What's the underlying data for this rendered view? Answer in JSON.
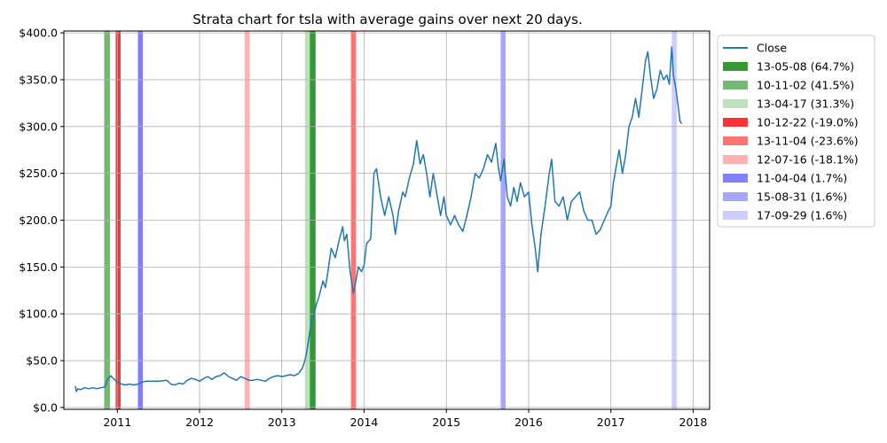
{
  "chart_data": {
    "type": "line",
    "title": "Strata chart for tsla with average gains over next 20 days.",
    "xlabel": "",
    "ylabel": "",
    "xlim": [
      2010.35,
      2018.2
    ],
    "ylim": [
      -2,
      402
    ],
    "x_ticks": [
      {
        "value": 2011,
        "label": "2011"
      },
      {
        "value": 2012,
        "label": "2012"
      },
      {
        "value": 2013,
        "label": "2013"
      },
      {
        "value": 2014,
        "label": "2014"
      },
      {
        "value": 2015,
        "label": "2015"
      },
      {
        "value": 2016,
        "label": "2016"
      },
      {
        "value": 2017,
        "label": "2017"
      },
      {
        "value": 2018,
        "label": "2018"
      }
    ],
    "y_ticks": [
      {
        "value": 0,
        "label": "$0.0"
      },
      {
        "value": 50,
        "label": "$50.0"
      },
      {
        "value": 100,
        "label": "$100.0"
      },
      {
        "value": 150,
        "label": "$150.0"
      },
      {
        "value": 200,
        "label": "$200.0"
      },
      {
        "value": 250,
        "label": "$250.0"
      },
      {
        "value": 300,
        "label": "$300.0"
      },
      {
        "value": 350,
        "label": "$350.0"
      },
      {
        "value": 400,
        "label": "$400.0"
      }
    ],
    "grid": true,
    "legend_position": "right",
    "series": [
      {
        "name": "Close",
        "color": "#1f77b4",
        "points": [
          [
            2010.49,
            23
          ],
          [
            2010.5,
            17
          ],
          [
            2010.52,
            20
          ],
          [
            2010.55,
            19
          ],
          [
            2010.6,
            21
          ],
          [
            2010.65,
            20
          ],
          [
            2010.7,
            21
          ],
          [
            2010.75,
            20
          ],
          [
            2010.8,
            21
          ],
          [
            2010.85,
            22
          ],
          [
            2010.88,
            30
          ],
          [
            2010.92,
            34
          ],
          [
            2010.95,
            31
          ],
          [
            2011.0,
            27
          ],
          [
            2011.05,
            25
          ],
          [
            2011.1,
            24
          ],
          [
            2011.15,
            25
          ],
          [
            2011.2,
            24
          ],
          [
            2011.25,
            25
          ],
          [
            2011.3,
            27
          ],
          [
            2011.35,
            28
          ],
          [
            2011.4,
            28
          ],
          [
            2011.5,
            28
          ],
          [
            2011.6,
            29
          ],
          [
            2011.65,
            25
          ],
          [
            2011.7,
            24
          ],
          [
            2011.75,
            26
          ],
          [
            2011.8,
            25
          ],
          [
            2011.85,
            29
          ],
          [
            2011.9,
            31
          ],
          [
            2011.95,
            30
          ],
          [
            2012.0,
            28
          ],
          [
            2012.05,
            31
          ],
          [
            2012.1,
            33
          ],
          [
            2012.15,
            30
          ],
          [
            2012.2,
            33
          ],
          [
            2012.25,
            34
          ],
          [
            2012.3,
            37
          ],
          [
            2012.35,
            33
          ],
          [
            2012.4,
            31
          ],
          [
            2012.45,
            29
          ],
          [
            2012.5,
            33
          ],
          [
            2012.55,
            31
          ],
          [
            2012.6,
            29
          ],
          [
            2012.65,
            29
          ],
          [
            2012.7,
            30
          ],
          [
            2012.75,
            29
          ],
          [
            2012.8,
            28
          ],
          [
            2012.85,
            31
          ],
          [
            2012.9,
            33
          ],
          [
            2012.95,
            34
          ],
          [
            2013.0,
            33
          ],
          [
            2013.05,
            34
          ],
          [
            2013.1,
            35
          ],
          [
            2013.15,
            34
          ],
          [
            2013.2,
            36
          ],
          [
            2013.25,
            42
          ],
          [
            2013.28,
            50
          ],
          [
            2013.3,
            58
          ],
          [
            2013.33,
            75
          ],
          [
            2013.36,
            92
          ],
          [
            2013.39,
            100
          ],
          [
            2013.42,
            110
          ],
          [
            2013.45,
            118
          ],
          [
            2013.5,
            135
          ],
          [
            2013.53,
            128
          ],
          [
            2013.56,
            145
          ],
          [
            2013.6,
            170
          ],
          [
            2013.65,
            160
          ],
          [
            2013.7,
            180
          ],
          [
            2013.74,
            193
          ],
          [
            2013.76,
            178
          ],
          [
            2013.79,
            185
          ],
          [
            2013.83,
            145
          ],
          [
            2013.87,
            122
          ],
          [
            2013.9,
            135
          ],
          [
            2013.93,
            150
          ],
          [
            2013.97,
            145
          ],
          [
            2014.0,
            152
          ],
          [
            2014.03,
            175
          ],
          [
            2014.08,
            180
          ],
          [
            2014.12,
            250
          ],
          [
            2014.15,
            255
          ],
          [
            2014.2,
            225
          ],
          [
            2014.25,
            205
          ],
          [
            2014.3,
            225
          ],
          [
            2014.35,
            205
          ],
          [
            2014.38,
            185
          ],
          [
            2014.42,
            210
          ],
          [
            2014.47,
            230
          ],
          [
            2014.5,
            225
          ],
          [
            2014.55,
            245
          ],
          [
            2014.6,
            260
          ],
          [
            2014.64,
            285
          ],
          [
            2014.68,
            260
          ],
          [
            2014.72,
            270
          ],
          [
            2014.76,
            250
          ],
          [
            2014.8,
            225
          ],
          [
            2014.84,
            250
          ],
          [
            2014.88,
            230
          ],
          [
            2014.93,
            205
          ],
          [
            2014.97,
            225
          ],
          [
            2015.0,
            205
          ],
          [
            2015.05,
            195
          ],
          [
            2015.1,
            205
          ],
          [
            2015.15,
            195
          ],
          [
            2015.2,
            188
          ],
          [
            2015.25,
            205
          ],
          [
            2015.3,
            225
          ],
          [
            2015.35,
            250
          ],
          [
            2015.4,
            245
          ],
          [
            2015.45,
            255
          ],
          [
            2015.5,
            270
          ],
          [
            2015.55,
            262
          ],
          [
            2015.6,
            282
          ],
          [
            2015.63,
            258
          ],
          [
            2015.66,
            242
          ],
          [
            2015.7,
            265
          ],
          [
            2015.74,
            225
          ],
          [
            2015.78,
            215
          ],
          [
            2015.82,
            235
          ],
          [
            2015.86,
            220
          ],
          [
            2015.9,
            240
          ],
          [
            2015.95,
            225
          ],
          [
            2016.0,
            230
          ],
          [
            2016.04,
            195
          ],
          [
            2016.08,
            170
          ],
          [
            2016.11,
            145
          ],
          [
            2016.15,
            185
          ],
          [
            2016.2,
            215
          ],
          [
            2016.25,
            250
          ],
          [
            2016.28,
            265
          ],
          [
            2016.32,
            220
          ],
          [
            2016.37,
            215
          ],
          [
            2016.42,
            225
          ],
          [
            2016.47,
            200
          ],
          [
            2016.52,
            220
          ],
          [
            2016.57,
            225
          ],
          [
            2016.62,
            230
          ],
          [
            2016.67,
            210
          ],
          [
            2016.72,
            200
          ],
          [
            2016.77,
            200
          ],
          [
            2016.82,
            185
          ],
          [
            2016.87,
            190
          ],
          [
            2016.92,
            200
          ],
          [
            2016.97,
            210
          ],
          [
            2017.0,
            215
          ],
          [
            2017.03,
            240
          ],
          [
            2017.06,
            255
          ],
          [
            2017.1,
            275
          ],
          [
            2017.14,
            250
          ],
          [
            2017.18,
            270
          ],
          [
            2017.22,
            300
          ],
          [
            2017.26,
            310
          ],
          [
            2017.3,
            330
          ],
          [
            2017.34,
            310
          ],
          [
            2017.38,
            340
          ],
          [
            2017.42,
            370
          ],
          [
            2017.45,
            380
          ],
          [
            2017.48,
            355
          ],
          [
            2017.52,
            330
          ],
          [
            2017.56,
            340
          ],
          [
            2017.6,
            360
          ],
          [
            2017.64,
            350
          ],
          [
            2017.68,
            355
          ],
          [
            2017.71,
            345
          ],
          [
            2017.74,
            385
          ],
          [
            2017.76,
            355
          ],
          [
            2017.79,
            340
          ],
          [
            2017.82,
            320
          ],
          [
            2017.84,
            306
          ],
          [
            2017.86,
            303
          ]
        ]
      }
    ],
    "strata": [
      {
        "label": "13-05-08 (64.7%)",
        "color": "#008000",
        "opacity": 0.8,
        "x_start": 2013.34,
        "x_end": 2013.41
      },
      {
        "label": "10-11-02 (41.5%)",
        "color": "#008000",
        "opacity": 0.55,
        "x_start": 2010.84,
        "x_end": 2010.91
      },
      {
        "label": "13-04-17 (31.3%)",
        "color": "#008000",
        "opacity": 0.25,
        "x_start": 2013.28,
        "x_end": 2013.34
      },
      {
        "label": "10-12-22 (-19.0%)",
        "color": "#ff0000",
        "opacity": 0.8,
        "x_start": 2010.98,
        "x_end": 2011.04
      },
      {
        "label": "13-11-04 (-23.6%)",
        "color": "#ff0000",
        "opacity": 0.55,
        "x_start": 2013.84,
        "x_end": 2013.9
      },
      {
        "label": "12-07-16 (-18.1%)",
        "color": "#ff0000",
        "opacity": 0.3,
        "x_start": 2012.55,
        "x_end": 2012.61
      },
      {
        "label": "11-04-04 (1.7%)",
        "color": "#0000ff",
        "opacity": 0.5,
        "x_start": 2011.25,
        "x_end": 2011.31
      },
      {
        "label": "15-08-31 (1.6%)",
        "color": "#0000ff",
        "opacity": 0.35,
        "x_start": 2015.66,
        "x_end": 2015.72
      },
      {
        "label": "17-09-29 (1.6%)",
        "color": "#0000ff",
        "opacity": 0.2,
        "x_start": 2017.74,
        "x_end": 2017.8
      }
    ]
  }
}
